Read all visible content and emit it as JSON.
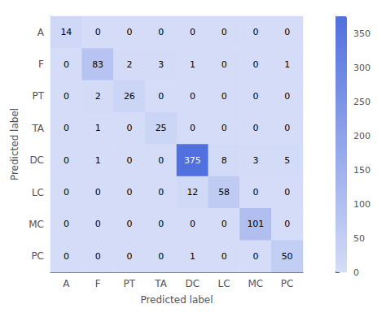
{
  "chart_data": {
    "type": "heatmap",
    "categories": [
      "A",
      "F",
      "PT",
      "TA",
      "DC",
      "LC",
      "MC",
      "PC"
    ],
    "xlabel": "Predicted label",
    "ylabel": "Predicted label",
    "matrix": [
      [
        14,
        0,
        0,
        0,
        0,
        0,
        0,
        0
      ],
      [
        0,
        83,
        2,
        3,
        1,
        0,
        0,
        1
      ],
      [
        0,
        2,
        26,
        0,
        0,
        0,
        0,
        0
      ],
      [
        0,
        1,
        0,
        25,
        0,
        0,
        0,
        0
      ],
      [
        0,
        1,
        0,
        0,
        375,
        8,
        3,
        5
      ],
      [
        0,
        0,
        0,
        0,
        12,
        58,
        0,
        0
      ],
      [
        0,
        0,
        0,
        0,
        0,
        0,
        101,
        0
      ],
      [
        0,
        0,
        0,
        0,
        1,
        0,
        0,
        50
      ]
    ],
    "colorbar_range": [
      0,
      375
    ],
    "colorbar_ticks": [
      0,
      50,
      100,
      150,
      200,
      250,
      300,
      350
    ],
    "data_labels": true
  }
}
